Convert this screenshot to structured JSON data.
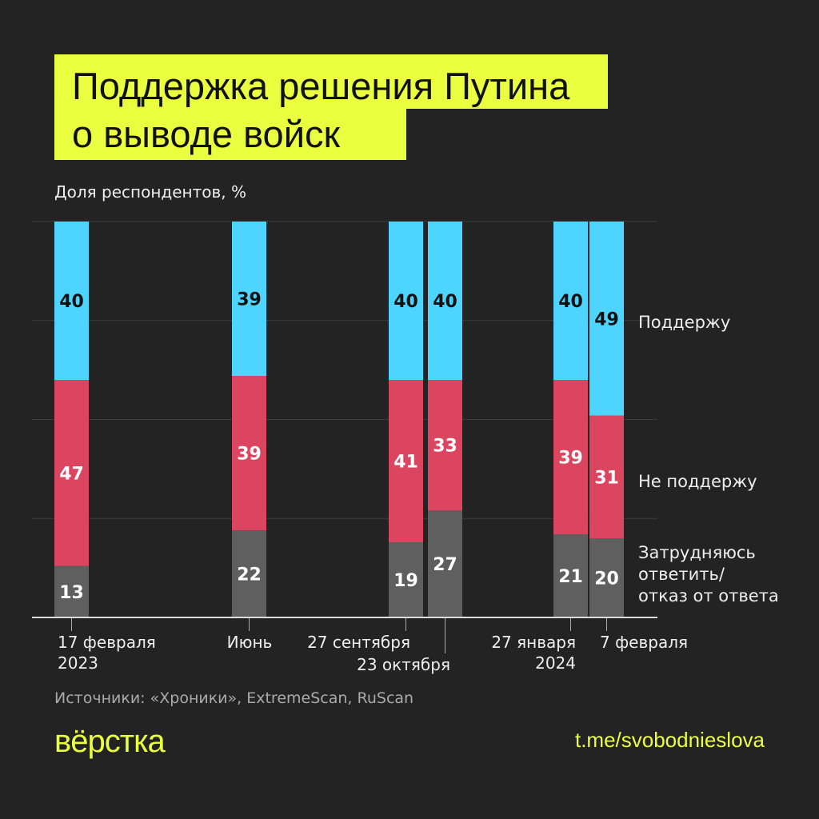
{
  "title_lines": [
    "Поддержка решения Путина",
    "о выводе войск"
  ],
  "source": "Источники: «Хроники», ExtremeScan, RuScan",
  "logo": "вёрстка",
  "link": "t.me/svobodnieslova",
  "chart_data": {
    "type": "stacked-bar",
    "ylabel": "Доля респондентов, %",
    "ylim": [
      0,
      100
    ],
    "grid": true,
    "categories": [
      [
        "17 февраля",
        "2023"
      ],
      [
        "Июнь"
      ],
      [
        "27 сентября"
      ],
      [
        "23 октября"
      ],
      [
        "27 января",
        "2024"
      ],
      [
        "7 февраля"
      ]
    ],
    "series": [
      {
        "name": "Затрудняюсь ответить/ отказ от ответа",
        "color": "#5f5f5f",
        "values": [
          13,
          22,
          19,
          27,
          21,
          20
        ]
      },
      {
        "name": "Не поддержу",
        "color": "#dc4560",
        "values": [
          47,
          39,
          41,
          33,
          39,
          31
        ]
      },
      {
        "name": "Поддержу",
        "color": "#4dd5ff",
        "values": [
          40,
          39,
          40,
          40,
          40,
          49
        ]
      }
    ],
    "legend_placement": "right"
  }
}
